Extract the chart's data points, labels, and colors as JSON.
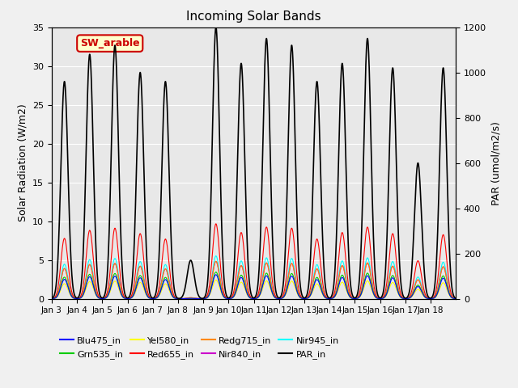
{
  "title": "Incoming Solar Bands",
  "ylabel_left": "Solar Radiation (W/m2)",
  "ylabel_right": "PAR (umol/m2/s)",
  "annotation": "SW_arable",
  "ylim_left": [
    0,
    35
  ],
  "ylim_right": [
    0,
    1200
  ],
  "background_color": "#f0f0f0",
  "plot_bg_color": "#e8e8e8",
  "series_colors": {
    "Blu475_in": "#0000ff",
    "Grn535_in": "#00cc00",
    "Yel580_in": "#ffff00",
    "Red655_in": "#ff0000",
    "Redg715_in": "#ff8800",
    "Nir840_in": "#cc00cc",
    "Nir945_in": "#00ffff",
    "PAR_in": "#000000"
  },
  "xtick_labels": [
    "Jan 3",
    "Jan 4",
    "Jan 5",
    "Jan 6",
    "Jan 7",
    "Jan 8",
    "Jan 9",
    "Jan 10",
    "Jan 11",
    "Jan 12",
    "Jan 13",
    "Jan 14",
    "Jan 15",
    "Jan 16",
    "Jan 17",
    "Jan 18"
  ],
  "xtick_pos": [
    0,
    1,
    2,
    3,
    4,
    5,
    6,
    7,
    8,
    9,
    10,
    11,
    12,
    13,
    14,
    15
  ],
  "day_peaks": [
    0.5,
    1.5,
    2.5,
    3.5,
    4.5,
    5.5,
    6.5,
    7.5,
    8.5,
    9.5,
    10.5,
    11.5,
    12.5,
    13.5,
    14.5,
    15.5
  ],
  "peak_heights_sw": [
    27.8,
    31.5,
    32.5,
    30.0,
    27.5,
    0.5,
    34.5,
    30.5,
    33.0,
    32.5,
    27.5,
    30.5,
    33.0,
    30.0,
    17.5,
    29.5
  ],
  "peak_heights_par": [
    960,
    1080,
    1120,
    1000,
    960,
    170,
    1200,
    1040,
    1150,
    1120,
    960,
    1040,
    1150,
    1020,
    600,
    1020
  ],
  "fractions": {
    "Blu475_in": 0.09,
    "Grn535_in": 0.1,
    "Yel580_in": 0.07,
    "Red655_in": 0.28,
    "Redg715_in": 0.14,
    "Nir840_in": 0.14,
    "Nir945_in": 0.16
  }
}
